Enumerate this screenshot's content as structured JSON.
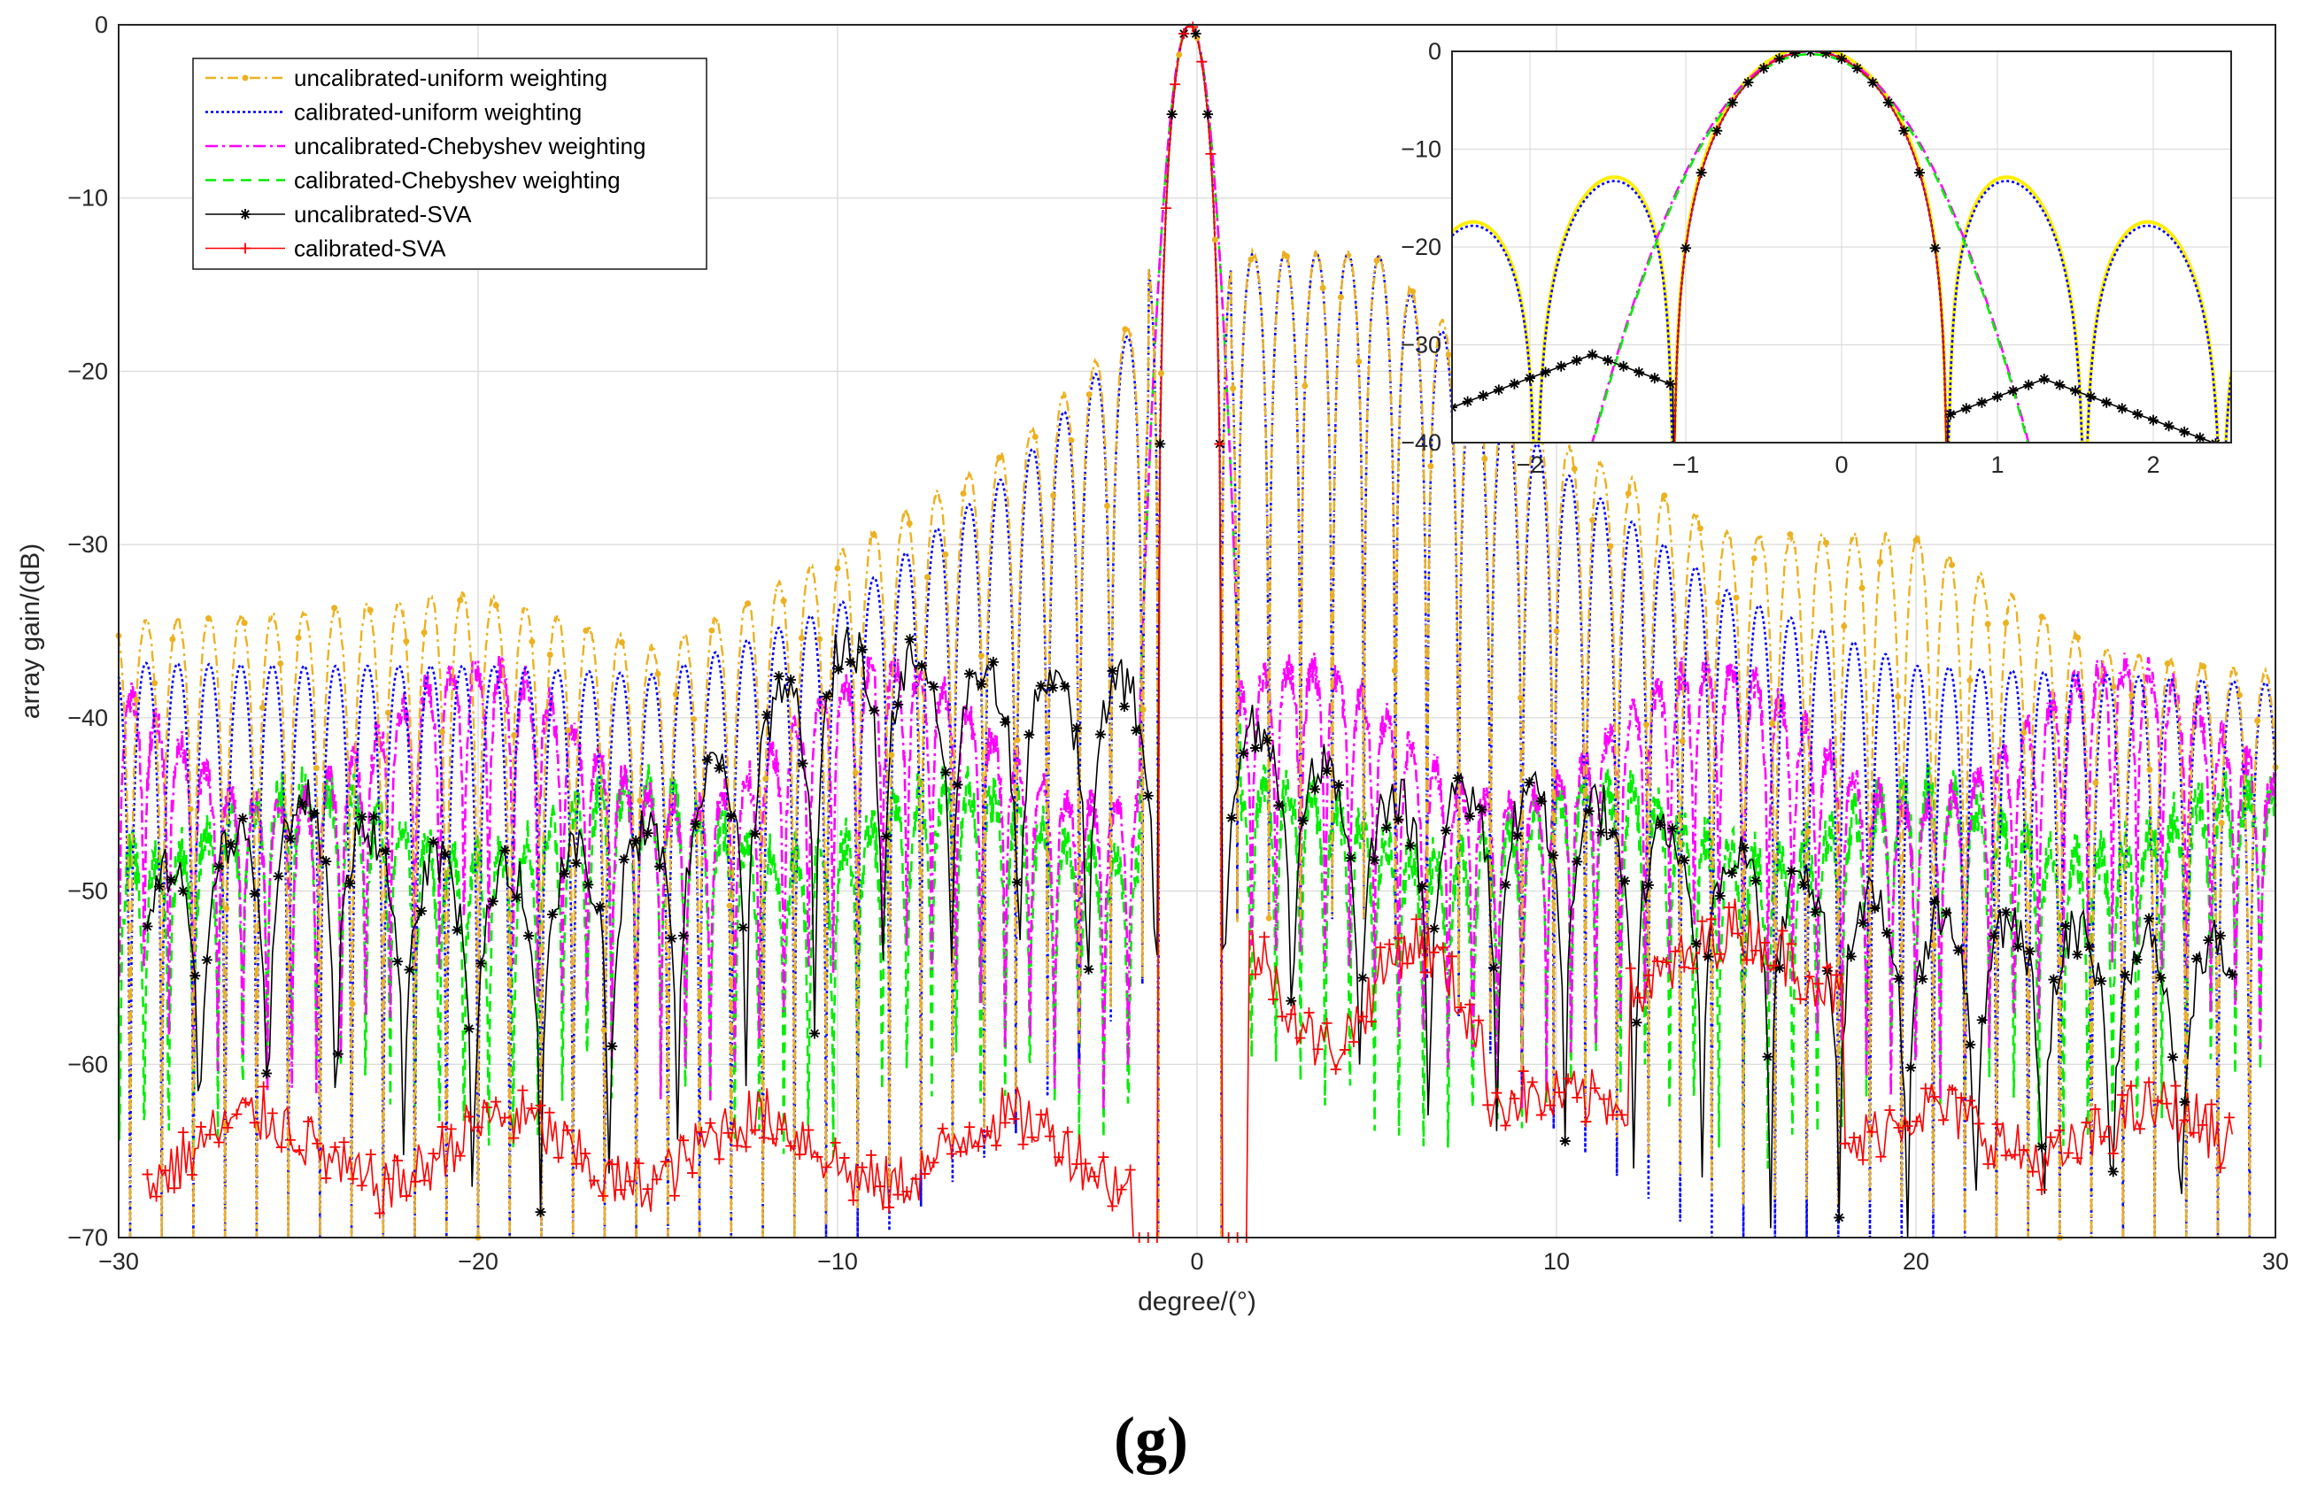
{
  "panel_label": "(g)",
  "chart_data": [
    {
      "id": "main",
      "type": "line",
      "xlabel": "degree/(°)",
      "ylabel": "array gain/(dB)",
      "xlim": [
        -30,
        30
      ],
      "ylim": [
        -70,
        0
      ],
      "xticks": [
        -30,
        -20,
        -10,
        0,
        10,
        20,
        30
      ],
      "yticks": [
        0,
        -10,
        -20,
        -30,
        -40,
        -50,
        -60,
        -70
      ],
      "grid": true,
      "legend_position": "top-left",
      "series": [
        {
          "name": "uncalibrated-uniform weighting",
          "color": "#EDB120",
          "style": "dashdot",
          "marker": "dot",
          "approx_sidelobe_peaks_db": [
            -34.5,
            -34.0,
            -32.8,
            -36.0,
            -30.5,
            -24.2,
            -13.2,
            -13.2,
            -24.0,
            -29.5,
            -29.5,
            -36.0,
            -37.5
          ]
        },
        {
          "name": "calibrated-uniform weighting",
          "color": "#0000FF",
          "style": "dotted",
          "marker": "none",
          "approx_sidelobe_peaks_db": [
            -36.8,
            -37.0,
            -37.0,
            -37.5,
            -33.5,
            -25.5,
            -13.2,
            -13.2,
            -25.5,
            -33.0,
            -37.0,
            -37.5,
            -38.0
          ]
        },
        {
          "name": "uncalibrated-Chebyshev weighting",
          "color": "#FF00FF",
          "style": "dashdot",
          "marker": "none",
          "approx_floor_db": -40
        },
        {
          "name": "calibrated-Chebyshev weighting",
          "color": "#00EE00",
          "style": "dashed",
          "marker": "none",
          "approx_floor_db": -40
        },
        {
          "name": "uncalibrated-SVA",
          "color": "#000000",
          "style": "solid",
          "marker": "asterisk",
          "approx_hump_peaks_db": [
            -46,
            -40,
            -45,
            -42,
            -31,
            -33,
            -34,
            -40,
            -40,
            -43,
            -47,
            -48,
            -49
          ]
        },
        {
          "name": "calibrated-SVA",
          "color": "#FF0000",
          "style": "solid",
          "marker": "plus",
          "approx_left_level_db": -65,
          "approx_right_peak_db": -50
        }
      ],
      "mainlobe_peak": {
        "x": -0.2,
        "y": 0
      }
    },
    {
      "id": "inset",
      "type": "line",
      "xlim": [
        -2.5,
        2.5
      ],
      "ylim": [
        -40,
        0
      ],
      "xticks": [
        -2,
        -1,
        0,
        1,
        2
      ],
      "yticks": [
        0,
        -10,
        -20,
        -30,
        -40
      ],
      "grid": true,
      "peak_x": -0.2,
      "uniform_first_nulls_x": [
        -1.08,
        0.68
      ],
      "uniform_first_sidelobes": [
        {
          "x": -1.5,
          "y": -13.2
        },
        {
          "x": 1.1,
          "y": -13.2
        }
      ],
      "uniform_second_sidelobe_right": {
        "x": 2.0,
        "y": -17.5
      },
      "chebyshev_mainlobe_halfwidth_x": 1.4,
      "sva_side_humps": [
        {
          "x": -1.6,
          "y": -31
        },
        {
          "x": 1.3,
          "y": -33.5
        }
      ]
    }
  ]
}
